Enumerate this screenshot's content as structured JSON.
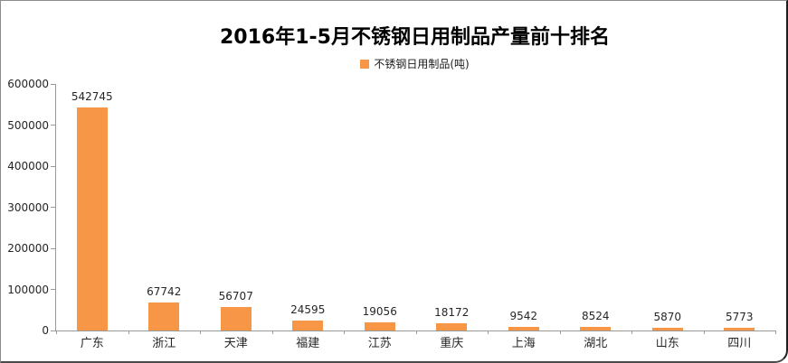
{
  "chart_data": {
    "type": "bar",
    "title": "2016年1-5月不锈钢日用制品产量前十排名",
    "legend": "不锈钢日用制品(吨)",
    "legend_position": "top",
    "categories": [
      "广东",
      "浙江",
      "天津",
      "福建",
      "江苏",
      "重庆",
      "上海",
      "湖北",
      "山东",
      "四川"
    ],
    "values": [
      542745,
      67742,
      56707,
      24595,
      19056,
      18172,
      9542,
      8524,
      5870,
      5773
    ],
    "xlabel": "",
    "ylabel": "",
    "ylim": [
      0,
      600000
    ],
    "ytick_labels": [
      "0",
      "100000",
      "200000",
      "300000",
      "400000",
      "500000",
      "600000"
    ],
    "grid": false,
    "data_labels": true,
    "bar_color": "#F79646",
    "axis_color": "#999999",
    "label_color": "#262626",
    "title_color": "#000000",
    "background_color": "#FFFFFF"
  }
}
